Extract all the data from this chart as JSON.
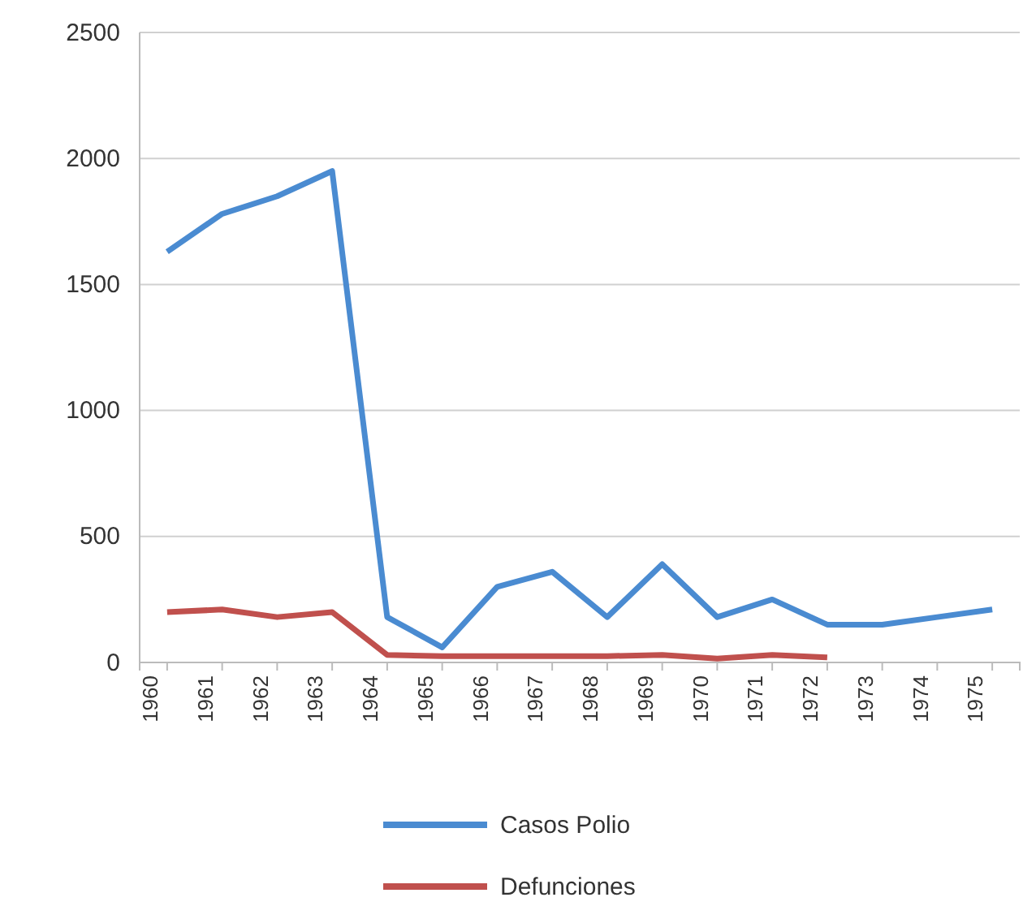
{
  "chart_data": {
    "type": "line",
    "categories": [
      "1960",
      "1961",
      "1962",
      "1963",
      "1964",
      "1965",
      "1966",
      "1967",
      "1968",
      "1969",
      "1970",
      "1971",
      "1972",
      "1973",
      "1974",
      "1975"
    ],
    "series": [
      {
        "name": "Casos Polio",
        "color": "#4a8bd1",
        "values": [
          1630,
          1780,
          1850,
          1950,
          180,
          60,
          300,
          360,
          180,
          390,
          180,
          250,
          150,
          150,
          180,
          210
        ]
      },
      {
        "name": "Defunciones",
        "color": "#c0504d",
        "values": [
          200,
          210,
          180,
          200,
          30,
          25,
          25,
          25,
          25,
          30,
          15,
          30,
          20,
          null,
          null,
          null
        ]
      }
    ],
    "ylim": [
      0,
      2500
    ],
    "yticks": [
      0,
      500,
      1000,
      1500,
      2000,
      2500
    ],
    "grid": "y",
    "legend": "bottom",
    "line_style": "solid",
    "marker": "none"
  }
}
